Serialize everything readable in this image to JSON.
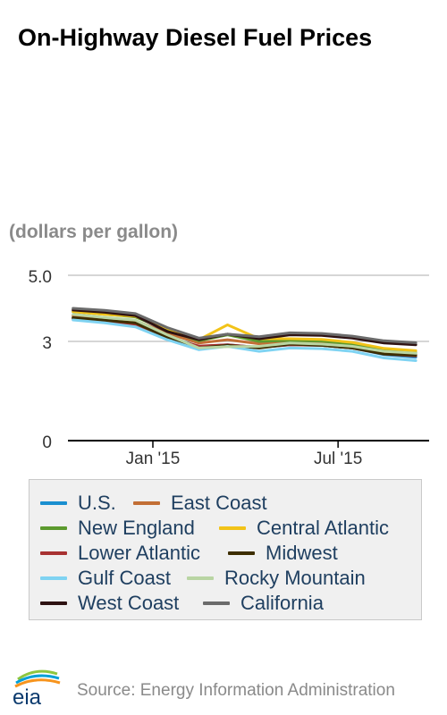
{
  "title": "On-Highway Diesel Fuel Prices",
  "units": "(dollars per gallon)",
  "source": "Source: Energy Information Administration",
  "logo_text": "eia",
  "chart_data": {
    "type": "line",
    "x": [
      "2014-10",
      "2014-11",
      "2014-12",
      "2015-01",
      "2015-02",
      "2015-03",
      "2015-04",
      "2015-05",
      "2015-06",
      "2015-07",
      "2015-08",
      "2015-09"
    ],
    "x_ticks": [
      {
        "value": "2015-01",
        "label": "Jan '15"
      },
      {
        "value": "2015-07",
        "label": "Jul '15"
      }
    ],
    "y_ticks": [
      {
        "value": 0,
        "label": "0"
      },
      {
        "value": 3,
        "label": "3"
      },
      {
        "value": 5,
        "label": "5.0"
      }
    ],
    "ylim": [
      0,
      5
    ],
    "grid": true,
    "legend_position": "bottom",
    "series": [
      {
        "name": "U.S.",
        "color": "#1a8fd0",
        "values": [
          3.71,
          3.64,
          3.55,
          3.15,
          2.85,
          2.9,
          2.82,
          2.9,
          2.88,
          2.8,
          2.6,
          2.52
        ]
      },
      {
        "name": "East Coast",
        "color": "#c26e35",
        "values": [
          3.78,
          3.7,
          3.63,
          3.25,
          2.95,
          3.05,
          2.93,
          3.0,
          2.98,
          2.89,
          2.7,
          2.63
        ]
      },
      {
        "name": "New England",
        "color": "#5c9a2e",
        "values": [
          3.9,
          3.82,
          3.74,
          3.35,
          3.02,
          3.2,
          3.0,
          3.03,
          3.01,
          2.92,
          2.73,
          2.66
        ]
      },
      {
        "name": "Central Atlantic",
        "color": "#f2c318",
        "values": [
          3.9,
          3.82,
          3.76,
          3.4,
          3.05,
          3.5,
          3.08,
          3.08,
          3.06,
          2.97,
          2.79,
          2.72
        ]
      },
      {
        "name": "Lower Atlantic",
        "color": "#a83232",
        "values": [
          3.68,
          3.62,
          3.5,
          3.12,
          2.86,
          2.9,
          2.82,
          2.9,
          2.88,
          2.8,
          2.62,
          2.56
        ]
      },
      {
        "name": "Midwest",
        "color": "#3d2e00",
        "values": [
          3.72,
          3.64,
          3.56,
          3.12,
          2.8,
          2.88,
          2.8,
          2.92,
          2.88,
          2.8,
          2.62,
          2.58
        ]
      },
      {
        "name": "Gulf Coast",
        "color": "#7fd3f2",
        "values": [
          3.65,
          3.56,
          3.44,
          3.05,
          2.75,
          2.85,
          2.7,
          2.8,
          2.78,
          2.7,
          2.5,
          2.42
        ]
      },
      {
        "name": "Rocky Mountain",
        "color": "#b9d5a3",
        "values": [
          3.82,
          3.72,
          3.64,
          3.2,
          2.8,
          2.84,
          2.85,
          2.95,
          2.92,
          2.85,
          2.7,
          2.64
        ]
      },
      {
        "name": "West Coast",
        "color": "#2e1212",
        "values": [
          3.95,
          3.88,
          3.78,
          3.3,
          3.05,
          3.22,
          3.08,
          3.2,
          3.18,
          3.1,
          2.95,
          2.9
        ]
      },
      {
        "name": "California",
        "color": "#6b6b6b",
        "values": [
          4.0,
          3.94,
          3.84,
          3.42,
          3.1,
          3.22,
          3.14,
          3.26,
          3.24,
          3.16,
          3.02,
          2.96
        ]
      }
    ]
  }
}
